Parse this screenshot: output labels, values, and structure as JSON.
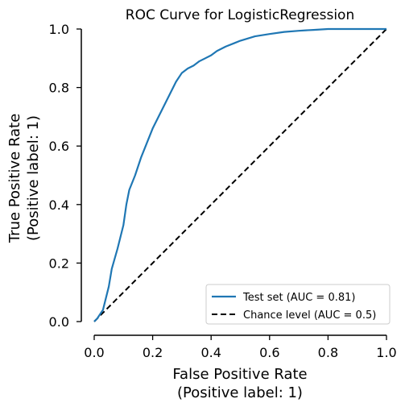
{
  "chart_data": {
    "type": "line",
    "title": "ROC Curve for LogisticRegression",
    "xlabel": [
      "False Positive Rate",
      "(Positive label: 1)"
    ],
    "ylabel": [
      "True Positive Rate",
      "(Positive label: 1)"
    ],
    "xlim": [
      0,
      1
    ],
    "ylim": [
      0,
      1
    ],
    "xticks": [
      "0.0",
      "0.2",
      "0.4",
      "0.6",
      "0.8",
      "1.0"
    ],
    "yticks": [
      "0.0",
      "0.2",
      "0.4",
      "0.6",
      "0.8",
      "1.0"
    ],
    "grid": false,
    "legend_position": "lower-right",
    "series": [
      {
        "name": "Test set (AUC = 0.81)",
        "color": "#1f77b4",
        "style": "solid",
        "x": [
          0,
          0.01,
          0.03,
          0.05,
          0.06,
          0.08,
          0.1,
          0.11,
          0.12,
          0.14,
          0.16,
          0.18,
          0.2,
          0.22,
          0.24,
          0.26,
          0.28,
          0.3,
          0.32,
          0.34,
          0.36,
          0.38,
          0.4,
          0.42,
          0.45,
          0.48,
          0.5,
          0.55,
          0.6,
          0.65,
          0.7,
          0.75,
          0.8,
          0.85,
          0.9,
          0.95,
          1.0
        ],
        "y": [
          0,
          0.01,
          0.04,
          0.12,
          0.18,
          0.25,
          0.33,
          0.4,
          0.45,
          0.5,
          0.56,
          0.61,
          0.66,
          0.7,
          0.74,
          0.78,
          0.82,
          0.85,
          0.865,
          0.875,
          0.89,
          0.9,
          0.91,
          0.925,
          0.94,
          0.952,
          0.96,
          0.975,
          0.983,
          0.99,
          0.994,
          0.997,
          1.0,
          1.0,
          1.0,
          1.0,
          1.0
        ]
      },
      {
        "name": "Chance level (AUC = 0.5)",
        "color": "#000000",
        "style": "dashed",
        "x": [
          0,
          1
        ],
        "y": [
          0,
          1
        ]
      }
    ]
  }
}
